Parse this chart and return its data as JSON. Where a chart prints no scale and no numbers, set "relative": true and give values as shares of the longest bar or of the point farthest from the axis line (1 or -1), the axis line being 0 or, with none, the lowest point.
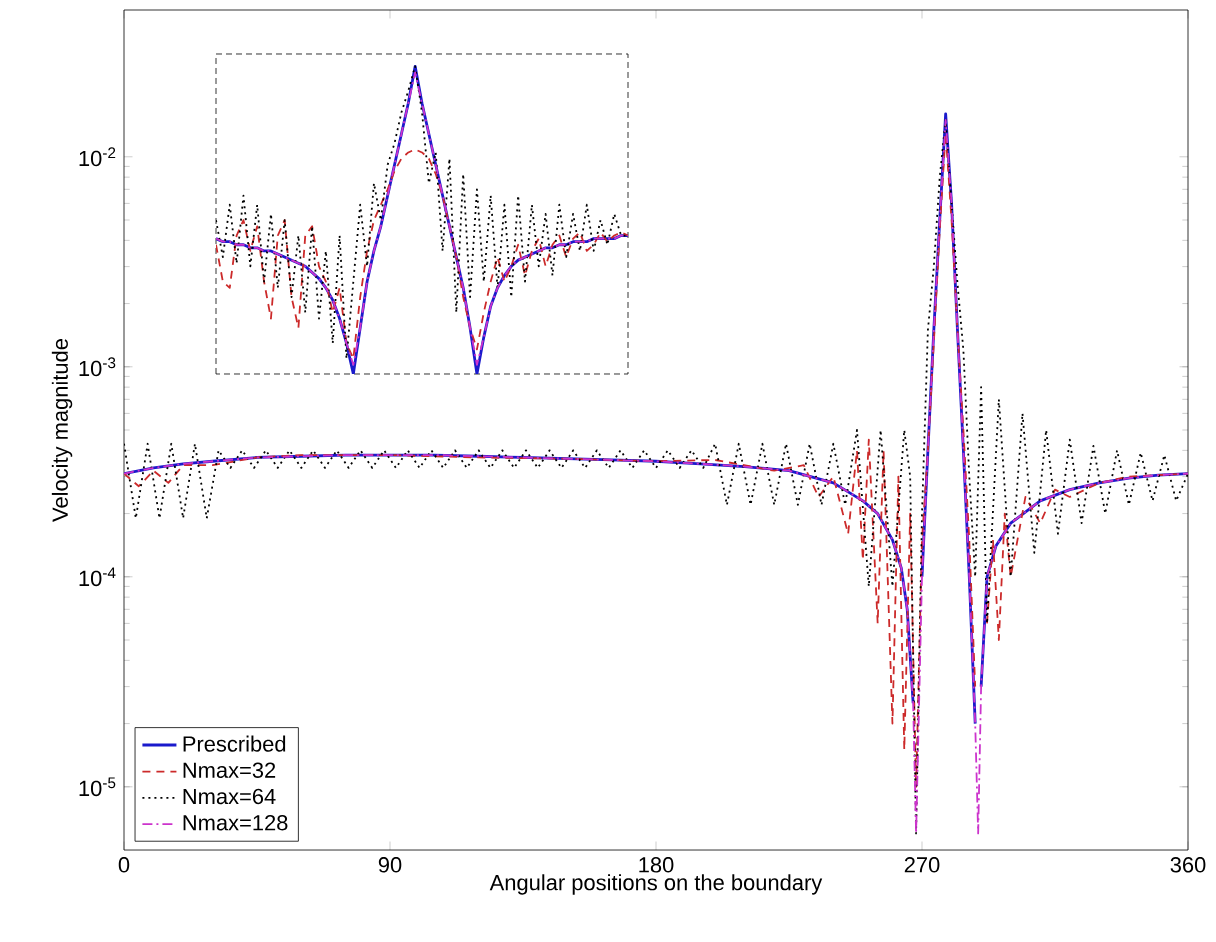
{
  "chart_data": [
    {
      "type": "line",
      "xlabel": "Angular positions on the boundary",
      "ylabel": "Velocity magnitude",
      "log": "y",
      "legend": "bottom left",
      "xlim": [
        0,
        360
      ],
      "xticks": [
        0,
        90,
        180,
        270,
        360
      ],
      "ylim": [
        5e-06,
        0.05
      ],
      "yticks": [
        {
          "value": 1e-05,
          "label": "10$^{-5}$"
        },
        {
          "value": 0.0001,
          "label": "10$^{-4}$"
        },
        {
          "value": 0.001,
          "label": "10$^{-3}$"
        },
        {
          "value": 0.01,
          "label": "10$^{-2}$"
        }
      ],
      "series": [
        {
          "name": "Prescribed",
          "color": "#1a1acc",
          "line_style": "solid",
          "x": [
            0,
            10,
            20,
            30,
            45,
            60,
            75,
            90,
            105,
            120,
            135,
            150,
            165,
            180,
            195,
            210,
            225,
            240,
            250,
            255,
            260,
            263,
            265,
            267,
            268,
            270,
            272,
            274,
            276,
            278,
            280,
            282,
            284,
            286,
            288,
            289,
            290,
            292,
            295,
            300,
            310,
            320,
            330,
            340,
            350,
            360
          ],
          "values": [
            0.00031,
            0.00033,
            0.000345,
            0.000355,
            0.00037,
            0.000375,
            0.00038,
            0.00038,
            0.00038,
            0.000375,
            0.00037,
            0.000365,
            0.00036,
            0.000355,
            0.000345,
            0.000335,
            0.00032,
            0.00028,
            0.00023,
            0.0002,
            0.00015,
            0.00011,
            7e-05,
            2.5e-05,
            null,
            0.0001,
            0.0004,
            0.0015,
            0.005,
            0.016,
            0.006,
            0.0015,
            0.0004,
            0.0001,
            2e-05,
            null,
            3e-05,
            0.0001,
            0.00014,
            0.00018,
            0.00023,
            0.00026,
            0.00028,
            0.000295,
            0.000305,
            0.00031
          ]
        },
        {
          "name": "Nmax=32",
          "color": "#cc2a2a",
          "line_style": "dashed",
          "x": [
            0,
            5,
            10,
            15,
            20,
            30,
            45,
            60,
            90,
            120,
            150,
            180,
            200,
            220,
            230,
            235,
            240,
            245,
            248,
            250,
            252,
            255,
            257,
            260,
            262,
            264,
            266,
            268,
            270,
            272,
            274,
            276,
            278,
            280,
            282,
            284,
            286,
            288,
            290,
            292,
            294,
            296,
            298,
            300,
            305,
            310,
            315,
            320,
            330,
            340,
            360
          ],
          "values": [
            0.00031,
            0.00027,
            0.00032,
            0.00028,
            0.00034,
            0.00034,
            0.00037,
            0.00038,
            0.00038,
            0.00037,
            0.000365,
            0.000355,
            0.00036,
            0.00032,
            0.00034,
            0.00024,
            0.0003,
            0.00016,
            0.0004,
            0.00012,
            0.00045,
            6e-05,
            0.0004,
            2e-05,
            0.0003,
            1.5e-05,
            0.0002,
            1e-05,
            0.00015,
            0.0004,
            0.0013,
            0.0045,
            0.013,
            0.005,
            0.0015,
            0.0005,
            0.00015,
            3e-05,
            null,
            6e-05,
            0.00015,
            5e-05,
            0.0002,
            0.0001,
            0.00024,
            0.00018,
            0.00026,
            0.00024,
            0.00028,
            0.0003,
            0.00031
          ]
        },
        {
          "name": "Nmax=64",
          "color": "#000000",
          "line_style": "dotted",
          "x": [
            0,
            4,
            8,
            12,
            16,
            20,
            24,
            28,
            32,
            36,
            40,
            44,
            48,
            52,
            56,
            60,
            64,
            68,
            72,
            76,
            80,
            84,
            88,
            92,
            96,
            100,
            104,
            108,
            112,
            116,
            120,
            124,
            128,
            132,
            136,
            140,
            144,
            148,
            152,
            156,
            160,
            164,
            168,
            172,
            176,
            180,
            184,
            188,
            192,
            196,
            200,
            204,
            208,
            212,
            216,
            220,
            224,
            228,
            232,
            236,
            240,
            244,
            248,
            252,
            256,
            260,
            264,
            266,
            268,
            270,
            272,
            274,
            276,
            278,
            280,
            282,
            284,
            286,
            288,
            290,
            292,
            296,
            300,
            304,
            308,
            312,
            316,
            320,
            324,
            328,
            332,
            336,
            340,
            344,
            348,
            352,
            356,
            360
          ],
          "values": [
            0.00043,
            0.00019,
            0.00043,
            0.00019,
            0.00043,
            0.00019,
            0.00043,
            0.00019,
            0.0004,
            0.00033,
            0.0004,
            0.00033,
            0.0004,
            0.00033,
            0.0004,
            0.00033,
            0.0004,
            0.00033,
            0.0004,
            0.00033,
            0.0004,
            0.00033,
            0.0004,
            0.00033,
            0.0004,
            0.00033,
            0.0004,
            0.00033,
            0.0004,
            0.00033,
            0.0004,
            0.00033,
            0.0004,
            0.00033,
            0.0004,
            0.00033,
            0.0004,
            0.00033,
            0.0004,
            0.00033,
            0.0004,
            0.00033,
            0.0004,
            0.00033,
            0.0004,
            0.00033,
            0.0004,
            0.00033,
            0.0004,
            0.00033,
            0.00043,
            0.00022,
            0.00043,
            0.00022,
            0.00043,
            0.00022,
            0.00043,
            0.00022,
            0.00043,
            0.00022,
            0.00043,
            0.00022,
            0.0005,
            9e-05,
            0.0005,
            9e-05,
            0.0005,
            0.0003,
            6e-06,
            0.0002,
            0.0015,
            0.003,
            0.008,
            0.015,
            0.006,
            0.0025,
            0.0012,
            0.0003,
            0.0001,
            0.0008,
            6e-05,
            0.0007,
            0.0001,
            0.0006,
            0.00013,
            0.0005,
            0.00016,
            0.00045,
            0.00018,
            0.00042,
            0.0002,
            0.0004,
            0.00022,
            0.00039,
            0.00023,
            0.00038,
            0.00023,
            0.00031
          ]
        },
        {
          "name": "Nmax=128",
          "color": "#cc33cc",
          "line_style": "dashdot",
          "x": [
            0,
            10,
            20,
            30,
            45,
            60,
            75,
            90,
            105,
            120,
            135,
            150,
            165,
            180,
            195,
            210,
            225,
            240,
            250,
            255,
            260,
            263,
            265,
            267,
            268,
            270,
            272,
            274,
            276,
            278,
            280,
            282,
            284,
            286,
            288,
            289,
            290,
            292,
            295,
            300,
            310,
            320,
            330,
            340,
            350,
            360
          ],
          "values": [
            0.00031,
            0.00033,
            0.000345,
            0.000355,
            0.00037,
            0.000375,
            0.00038,
            0.00038,
            0.00038,
            0.000375,
            0.00037,
            0.000365,
            0.00036,
            0.000355,
            0.000345,
            0.000335,
            0.00032,
            0.00028,
            0.00023,
            0.0002,
            0.00015,
            0.00011,
            7e-05,
            2.5e-05,
            6e-06,
            0.0001,
            0.0004,
            0.0015,
            0.005,
            0.015,
            0.006,
            0.0015,
            0.0004,
            0.0001,
            2e-05,
            6e-06,
            3e-05,
            0.0001,
            0.00014,
            0.00018,
            0.00023,
            0.00026,
            0.00028,
            0.000295,
            0.000305,
            0.00031
          ]
        }
      ]
    },
    {
      "type": "line",
      "relative": true,
      "categories": [
        null,
        null,
        null,
        null,
        null,
        null,
        null,
        null,
        null,
        null,
        null,
        null,
        null,
        null,
        null,
        null,
        null,
        null,
        null,
        null,
        null,
        null,
        null,
        null,
        null,
        null,
        null,
        null,
        null,
        null,
        null,
        null,
        null,
        null,
        null,
        null,
        null,
        null,
        null,
        null,
        null,
        null,
        null,
        null,
        null,
        null,
        null,
        null,
        null,
        null,
        null,
        null,
        null,
        null,
        null,
        null,
        null,
        null,
        null,
        null,
        null
      ],
      "series": [
        {
          "color": "#1a1acc",
          "line_style": "solid",
          "values": [
            0.44,
            0.43,
            0.43,
            0.42,
            0.42,
            0.41,
            0.41,
            0.4,
            0.4,
            0.39,
            0.38,
            0.37,
            0.36,
            0.35,
            0.33,
            0.31,
            0.28,
            0.24,
            0.18,
            0.1,
            0,
            0.15,
            0.3,
            0.4,
            0.48,
            0.58,
            0.68,
            0.78,
            0.88,
            1,
            0.88,
            0.78,
            0.68,
            0.58,
            0.48,
            0.38,
            0.28,
            0.15,
            0,
            0.12,
            0.22,
            0.28,
            0.32,
            0.35,
            0.37,
            0.38,
            0.39,
            0.4,
            0.41,
            0.41,
            0.42,
            0.42,
            0.43,
            0.43,
            0.43,
            0.44,
            0.44,
            0.44,
            0.44,
            0.45,
            0.45
          ]
        },
        {
          "color": "#cc2a2a",
          "line_style": "dashed",
          "values": [
            0.42,
            0.3,
            0.28,
            0.45,
            0.5,
            0.4,
            0.48,
            0.3,
            0.18,
            0.45,
            0.5,
            0.25,
            0.15,
            0.45,
            0.48,
            0.35,
            0.3,
            0.2,
            0.28,
            0.1,
            0.05,
            0.25,
            0.4,
            0.5,
            0.55,
            0.6,
            0.66,
            0.7,
            0.72,
            0.73,
            0.72,
            0.7,
            0.65,
            0.58,
            0.48,
            0.38,
            0.25,
            0.15,
            0.08,
            0.2,
            0.3,
            0.38,
            0.3,
            0.35,
            0.42,
            0.32,
            0.4,
            0.44,
            0.35,
            0.42,
            0.45,
            0.38,
            0.44,
            0.46,
            0.4,
            0.42,
            0.46,
            0.43,
            0.45,
            0.46,
            0.45
          ]
        },
        {
          "color": "#000000",
          "line_style": "dotted",
          "values": [
            0.5,
            0.38,
            0.55,
            0.36,
            0.58,
            0.35,
            0.55,
            0.3,
            0.52,
            0.28,
            0.5,
            0.25,
            0.45,
            0.2,
            0.48,
            0.18,
            0.4,
            0.1,
            0.45,
            0.05,
            0.3,
            0.55,
            0.35,
            0.62,
            0.5,
            0.68,
            0.75,
            0.85,
            0.92,
            1,
            0.85,
            0.62,
            0.72,
            0.4,
            0.7,
            0.2,
            0.65,
            0.25,
            0.6,
            0.3,
            0.58,
            0.28,
            0.55,
            0.25,
            0.58,
            0.3,
            0.55,
            0.35,
            0.52,
            0.32,
            0.55,
            0.38,
            0.52,
            0.4,
            0.55,
            0.4,
            0.5,
            0.42,
            0.52,
            0.45,
            0.45
          ]
        },
        {
          "color": "#cc33cc",
          "line_style": "dashdot",
          "values": [
            0.44,
            0.43,
            0.43,
            0.42,
            0.42,
            0.41,
            0.41,
            0.4,
            0.4,
            0.39,
            0.38,
            0.37,
            0.36,
            0.35,
            0.33,
            0.31,
            0.28,
            0.24,
            0.18,
            0.1,
            0.03,
            0.15,
            0.3,
            0.4,
            0.48,
            0.58,
            0.68,
            0.78,
            0.88,
            0.98,
            0.88,
            0.78,
            0.68,
            0.58,
            0.48,
            0.38,
            0.28,
            0.15,
            0.03,
            0.12,
            0.22,
            0.28,
            0.32,
            0.35,
            0.37,
            0.38,
            0.39,
            0.4,
            0.41,
            0.41,
            0.42,
            0.42,
            0.43,
            0.43,
            0.43,
            0.44,
            0.44,
            0.44,
            0.44,
            0.45,
            0.45
          ]
        }
      ]
    }
  ]
}
